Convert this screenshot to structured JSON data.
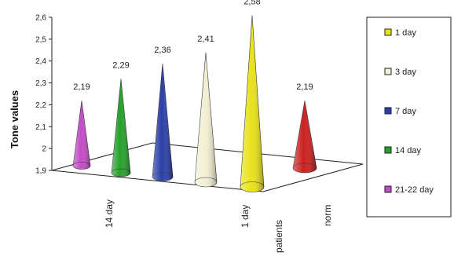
{
  "chart_data": {
    "type": "bar",
    "title": "",
    "xlabel": "",
    "ylabel": "Tone values",
    "ylim": [
      1.9,
      2.6
    ],
    "yticks": [
      "1,9",
      "2",
      "2,1",
      "2,2",
      "2,3",
      "2,4",
      "2,5",
      "2,6"
    ],
    "grid": false,
    "depth_categories": [
      "patients",
      "norm"
    ],
    "front_labels": [
      "14 day",
      "1 day"
    ],
    "series": [
      {
        "name": "21-22 day",
        "value": 2.19,
        "label": "2,19",
        "color": "#c44bc8",
        "group": "patients"
      },
      {
        "name": "14 day",
        "value": 2.29,
        "label": "2,29",
        "color": "#25a12a",
        "group": "patients"
      },
      {
        "name": "7 day",
        "value": 2.36,
        "label": "2,36",
        "color": "#2a3fa8",
        "group": "patients"
      },
      {
        "name": "3 day",
        "value": 2.41,
        "label": "2,41",
        "color": "#f2f0d2",
        "group": "patients"
      },
      {
        "name": "1  day",
        "value": 2.58,
        "label": "2,58",
        "color": "#e9e21a",
        "group": "patients"
      },
      {
        "name": "",
        "value": 2.19,
        "label": "2,19",
        "color": "#cc1f1f",
        "group": "norm"
      }
    ],
    "legend": {
      "placement": "right",
      "entries": [
        {
          "label": "1  day",
          "color": "#e9e21a"
        },
        {
          "label": "3 day",
          "color": "#f2f0d2"
        },
        {
          "label": "7 day",
          "color": "#2a3fa8"
        },
        {
          "label": "14 day",
          "color": "#25a12a"
        },
        {
          "label": "21-22 day",
          "color": "#c44bc8"
        }
      ]
    }
  }
}
